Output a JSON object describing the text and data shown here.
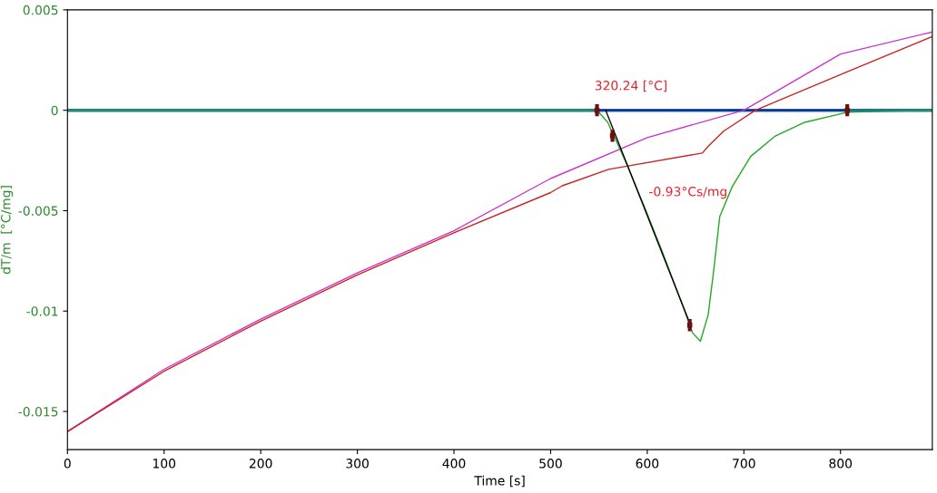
{
  "chart_data": {
    "type": "line",
    "xlabel": "Time [s]",
    "ylabel": "dT/m  [°C/mg]",
    "xlim": [
      0,
      895
    ],
    "ylim": [
      -0.0169,
      0.005
    ],
    "xticks": [
      0,
      100,
      200,
      300,
      400,
      500,
      600,
      700,
      800
    ],
    "yticks": [
      {
        "value": 0.005,
        "label": "0.005"
      },
      0,
      {
        "value": -0.005,
        "label": "-0.005"
      },
      {
        "value": -0.01,
        "label": "-0.01"
      },
      {
        "value": -0.015,
        "label": "-0.015"
      }
    ],
    "grid": false,
    "legend": false,
    "series": [
      {
        "color": "#1f6f9f",
        "x": [
          0,
          895
        ],
        "values": [
          0,
          0
        ]
      },
      {
        "color": "#1010a0",
        "x": [
          548,
          807
        ],
        "values": [
          0,
          0
        ]
      },
      {
        "color": "#cc33cc",
        "x": [
          0,
          100,
          200,
          300,
          400,
          500,
          600,
          700,
          800,
          895
        ],
        "values": [
          -0.016,
          -0.0129,
          -0.0104,
          -0.0081,
          -0.006,
          -0.0034,
          -0.00136,
          0,
          0.0028,
          0.0039
        ]
      },
      {
        "color": "#cc2222",
        "x": [
          0,
          100,
          200,
          300,
          400,
          500,
          512,
          560,
          657,
          663,
          679,
          712,
          806,
          895
        ],
        "values": [
          -0.016,
          -0.013,
          -0.0105,
          -0.0082,
          -0.0061,
          -0.0041,
          -0.00376,
          -0.00294,
          -0.00213,
          -0.0018,
          -0.00104,
          0,
          0.0019,
          0.00367
        ]
      },
      {
        "color": "#22aa22",
        "x": [
          0,
          548,
          559,
          578,
          597,
          616,
          638,
          647,
          655,
          663,
          669,
          675,
          688,
          707,
          732,
          763,
          807,
          895
        ],
        "values": [
          0,
          0,
          -0.00059,
          -0.0026,
          -0.0048,
          -0.0071,
          -0.0099,
          -0.0111,
          -0.0115,
          -0.0102,
          -0.0079,
          -0.0053,
          -0.0038,
          -0.0023,
          -0.0013,
          -0.0006,
          -0.0001,
          0
        ]
      },
      {
        "color": "#000000",
        "x": [
          557,
          644
        ],
        "values": [
          0,
          -0.0106
        ]
      },
      {
        "type": "scatter",
        "color": "#6b0f0f",
        "marker": "square",
        "x": [
          548,
          564,
          644,
          807
        ],
        "values": [
          0,
          -0.00127,
          -0.0107,
          0
        ],
        "errors": [
          0.0003,
          0.0003,
          0.0003,
          0.0003
        ]
      }
    ],
    "annotations": [
      {
        "text": "320.24 [°C]",
        "x": 548,
        "y": 0
      },
      {
        "text": "-0.93°Cs/mg",
        "x": 591,
        "y": -0.0041
      }
    ]
  }
}
